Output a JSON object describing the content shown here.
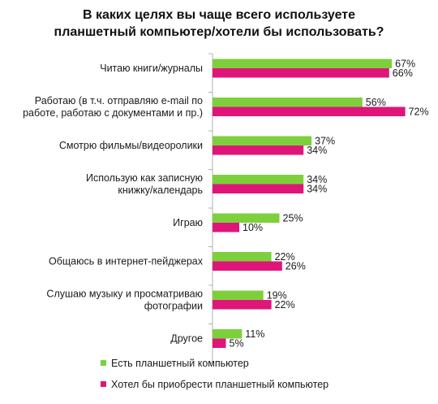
{
  "colors": {
    "series1": "#7dd03c",
    "series2": "#e0157a",
    "axis": "#b0b0b0"
  },
  "chart_data": {
    "type": "bar",
    "orientation": "horizontal",
    "title_lines": [
      "В каких целях вы чаще всего используете",
      "планшетный компьютер/хотели бы использовать?"
    ],
    "categories": [
      [
        "Читаю книги/журналы"
      ],
      [
        "Работаю (в т.ч. отправляю  e-mail по",
        "работе, работаю с документами и пр.)"
      ],
      [
        "Смотрю фильмы/видеоролики"
      ],
      [
        "Использую как записную",
        "книжку/календарь"
      ],
      [
        "Играю"
      ],
      [
        "Общаюсь в интернет-пейджерах"
      ],
      [
        "Слушаю музыку и просматриваю",
        "фотографии"
      ],
      [
        "Другое"
      ]
    ],
    "series": [
      {
        "name": "Есть планшетный  компьютер",
        "values": [
          67,
          56,
          37,
          34,
          25,
          22,
          19,
          11
        ],
        "labels": [
          "67%",
          "56%",
          "37%",
          "34%",
          "25%",
          "22%",
          "19%",
          "11%"
        ]
      },
      {
        "name": "Хотел бы приобрести планшетный  компьютер",
        "values": [
          66,
          72,
          34,
          34,
          10,
          26,
          22,
          5
        ],
        "labels": [
          "66%",
          "72%",
          "34%",
          "34%",
          "10%",
          "26%",
          "22%",
          "5%"
        ]
      }
    ],
    "xlim": [
      0,
      100
    ],
    "grid": false,
    "legend_position": "bottom-left"
  }
}
